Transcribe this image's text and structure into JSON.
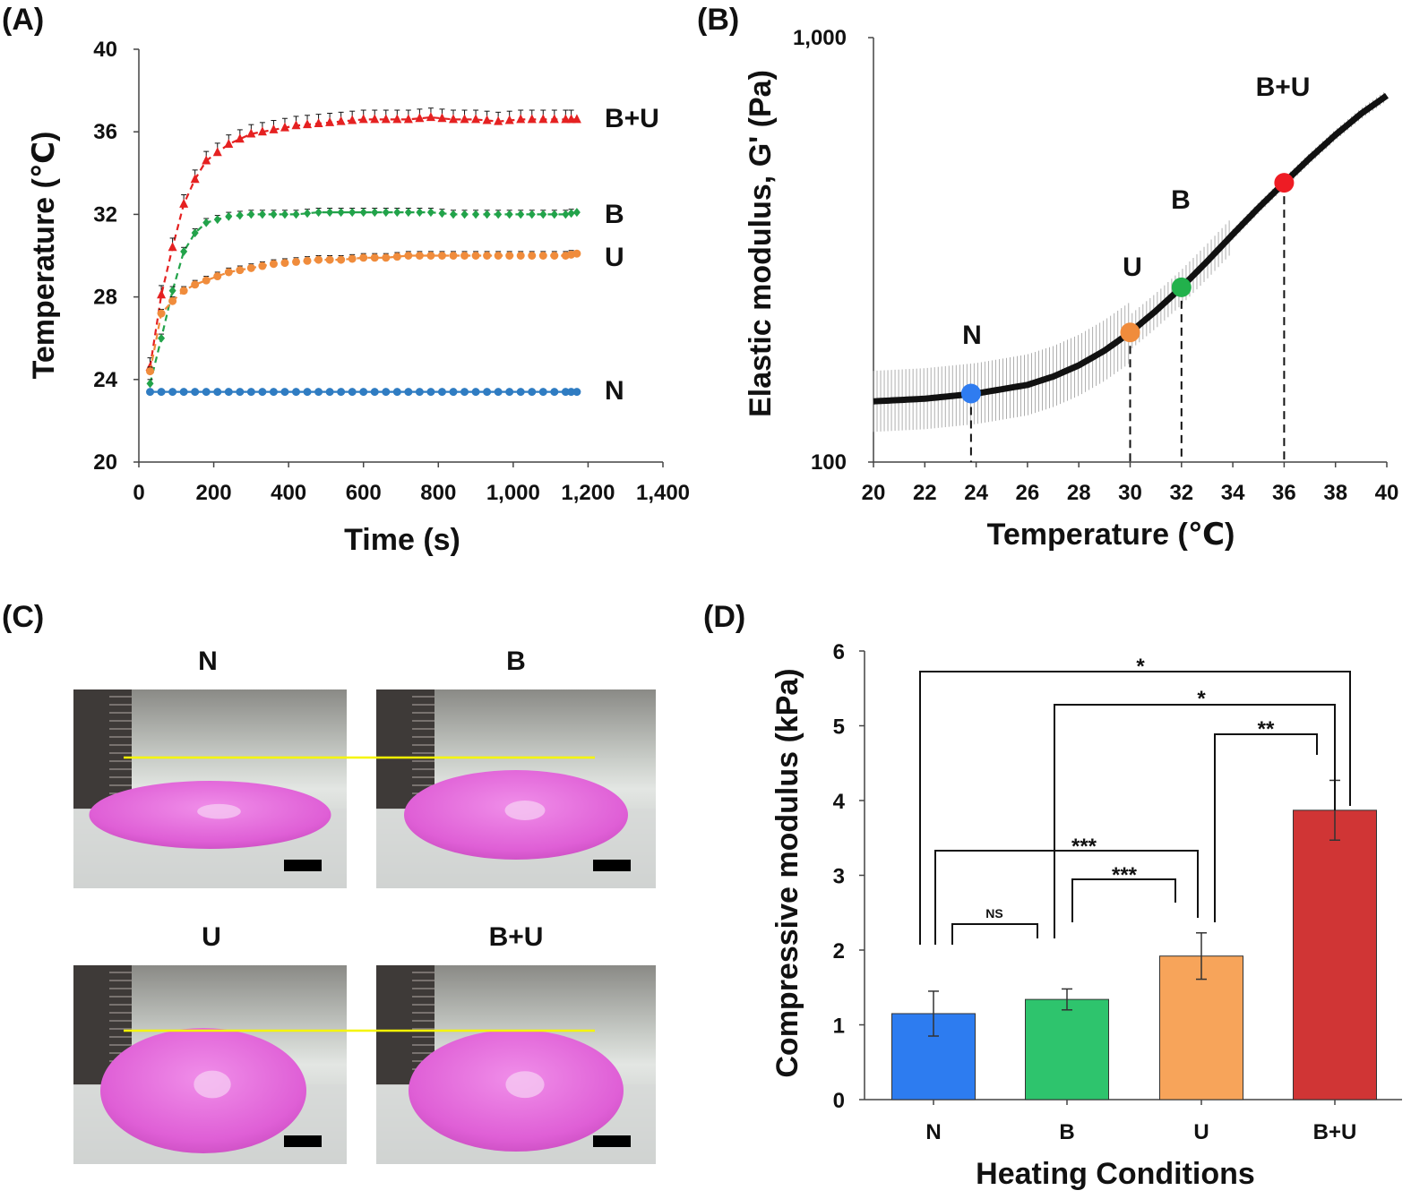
{
  "chart_data": [
    {
      "panel": "(A)",
      "type": "line",
      "xlabel": "Time (s)",
      "ylabel": "Temperature (℃)",
      "xlim": [
        0,
        1400
      ],
      "ylim": [
        20,
        40
      ],
      "xticks": [
        "0",
        "200",
        "400",
        "600",
        "800",
        "1,000",
        "1,200",
        "1,400"
      ],
      "yticks": [
        "20",
        "24",
        "28",
        "32",
        "36",
        "40"
      ],
      "series": [
        {
          "name": "B+U",
          "color": "#e52121",
          "marker": "triangle",
          "x": [
            30,
            60,
            90,
            120,
            150,
            180,
            240,
            300,
            360,
            420,
            480,
            540,
            600,
            660,
            720,
            780,
            840,
            900,
            960,
            1020,
            1080,
            1140,
            1170
          ],
          "y": [
            24.6,
            28.1,
            30.4,
            32.5,
            33.7,
            34.6,
            35.4,
            35.9,
            36.1,
            36.3,
            36.4,
            36.5,
            36.6,
            36.6,
            36.6,
            36.7,
            36.6,
            36.6,
            36.5,
            36.6,
            36.6,
            36.6,
            36.6
          ]
        },
        {
          "name": "B",
          "color": "#22a34a",
          "marker": "diamond",
          "x": [
            30,
            60,
            90,
            120,
            150,
            180,
            240,
            300,
            360,
            420,
            480,
            540,
            600,
            660,
            720,
            780,
            840,
            900,
            960,
            1020,
            1080,
            1140,
            1170
          ],
          "y": [
            23.8,
            26.0,
            28.3,
            30.2,
            31.1,
            31.6,
            31.9,
            32.0,
            32.0,
            32.0,
            32.1,
            32.1,
            32.1,
            32.1,
            32.1,
            32.1,
            32.0,
            32.0,
            32.0,
            32.0,
            32.0,
            32.0,
            32.1
          ]
        },
        {
          "name": "U",
          "color": "#f08c3c",
          "marker": "circle",
          "x": [
            30,
            60,
            90,
            120,
            150,
            180,
            240,
            300,
            360,
            420,
            480,
            540,
            600,
            660,
            720,
            780,
            840,
            900,
            960,
            1020,
            1080,
            1140,
            1170
          ],
          "y": [
            24.4,
            27.2,
            27.8,
            28.3,
            28.6,
            28.8,
            29.2,
            29.4,
            29.6,
            29.7,
            29.8,
            29.8,
            29.9,
            29.9,
            30.0,
            30.0,
            30.0,
            30.0,
            30.0,
            30.0,
            30.0,
            30.0,
            30.1
          ]
        },
        {
          "name": "N",
          "color": "#2f7cc2",
          "marker": "circle",
          "x": [
            30,
            60,
            90,
            120,
            150,
            180,
            240,
            300,
            360,
            420,
            480,
            540,
            600,
            660,
            720,
            780,
            840,
            900,
            960,
            1020,
            1080,
            1140,
            1170
          ],
          "y": [
            23.4,
            23.4,
            23.4,
            23.4,
            23.4,
            23.4,
            23.4,
            23.4,
            23.4,
            23.4,
            23.4,
            23.4,
            23.4,
            23.4,
            23.4,
            23.4,
            23.4,
            23.4,
            23.4,
            23.4,
            23.4,
            23.4,
            23.4
          ]
        }
      ]
    },
    {
      "panel": "(B)",
      "type": "line",
      "xlabel": "Temperature (℃)",
      "ylabel": "Elastic modulus, G' (Pa)",
      "xlim": [
        20,
        40
      ],
      "ylim": [
        100,
        1000
      ],
      "yscale": "log",
      "xticks": [
        "20",
        "22",
        "24",
        "26",
        "28",
        "30",
        "32",
        "34",
        "36",
        "38",
        "40"
      ],
      "yticks": [
        "100",
        "1,000"
      ],
      "curve": {
        "x": [
          20,
          22,
          24,
          26,
          27,
          28,
          29,
          30,
          31,
          32,
          33,
          34,
          35,
          36,
          37,
          38,
          39,
          40
        ],
        "y": [
          139,
          141,
          145,
          152,
          159,
          169,
          183,
          202,
          227,
          258,
          297,
          344,
          397,
          455,
          520,
          590,
          662,
          730
        ]
      },
      "highlights": [
        {
          "name": "N",
          "x": 23.8,
          "y": 145,
          "color": "#2f7cf0"
        },
        {
          "name": "U",
          "x": 30,
          "y": 202,
          "color": "#f08c3c"
        },
        {
          "name": "B",
          "x": 32,
          "y": 258,
          "color": "#22b14c"
        },
        {
          "name": "B+U",
          "x": 36,
          "y": 455,
          "color": "#ee1c24"
        }
      ]
    },
    {
      "panel": "(D)",
      "type": "bar",
      "xlabel": "Heating Conditions",
      "ylabel": "Compressive modulus (kPa)",
      "ylim": [
        0,
        6
      ],
      "yticks": [
        "0",
        "1",
        "2",
        "3",
        "4",
        "5",
        "6"
      ],
      "categories": [
        "N",
        "B",
        "U",
        "B+U"
      ],
      "values": [
        1.15,
        1.34,
        1.92,
        3.87
      ],
      "errors": [
        0.3,
        0.14,
        0.31,
        0.4
      ],
      "colors": [
        "#2d7cf0",
        "#2ec46d",
        "#f7a45a",
        "#d03535"
      ],
      "significance": [
        {
          "from": 0,
          "to": 3,
          "label": "*"
        },
        {
          "from": 1,
          "to": 3,
          "label": "*"
        },
        {
          "from": 2,
          "to": 3,
          "label": "**"
        },
        {
          "from": 0,
          "to": 2,
          "label": "***"
        },
        {
          "from": 1,
          "to": 2,
          "label": "***"
        },
        {
          "from": 0,
          "to": 1,
          "label": "NS"
        }
      ]
    }
  ],
  "panels": {
    "a": "(A)",
    "b": "(B)",
    "c": "(C)",
    "d": "(D)"
  },
  "photos": {
    "labels": [
      "N",
      "B",
      "U",
      "B+U"
    ],
    "gel_color": "#e062d6",
    "guide_color": "#f5f500"
  }
}
